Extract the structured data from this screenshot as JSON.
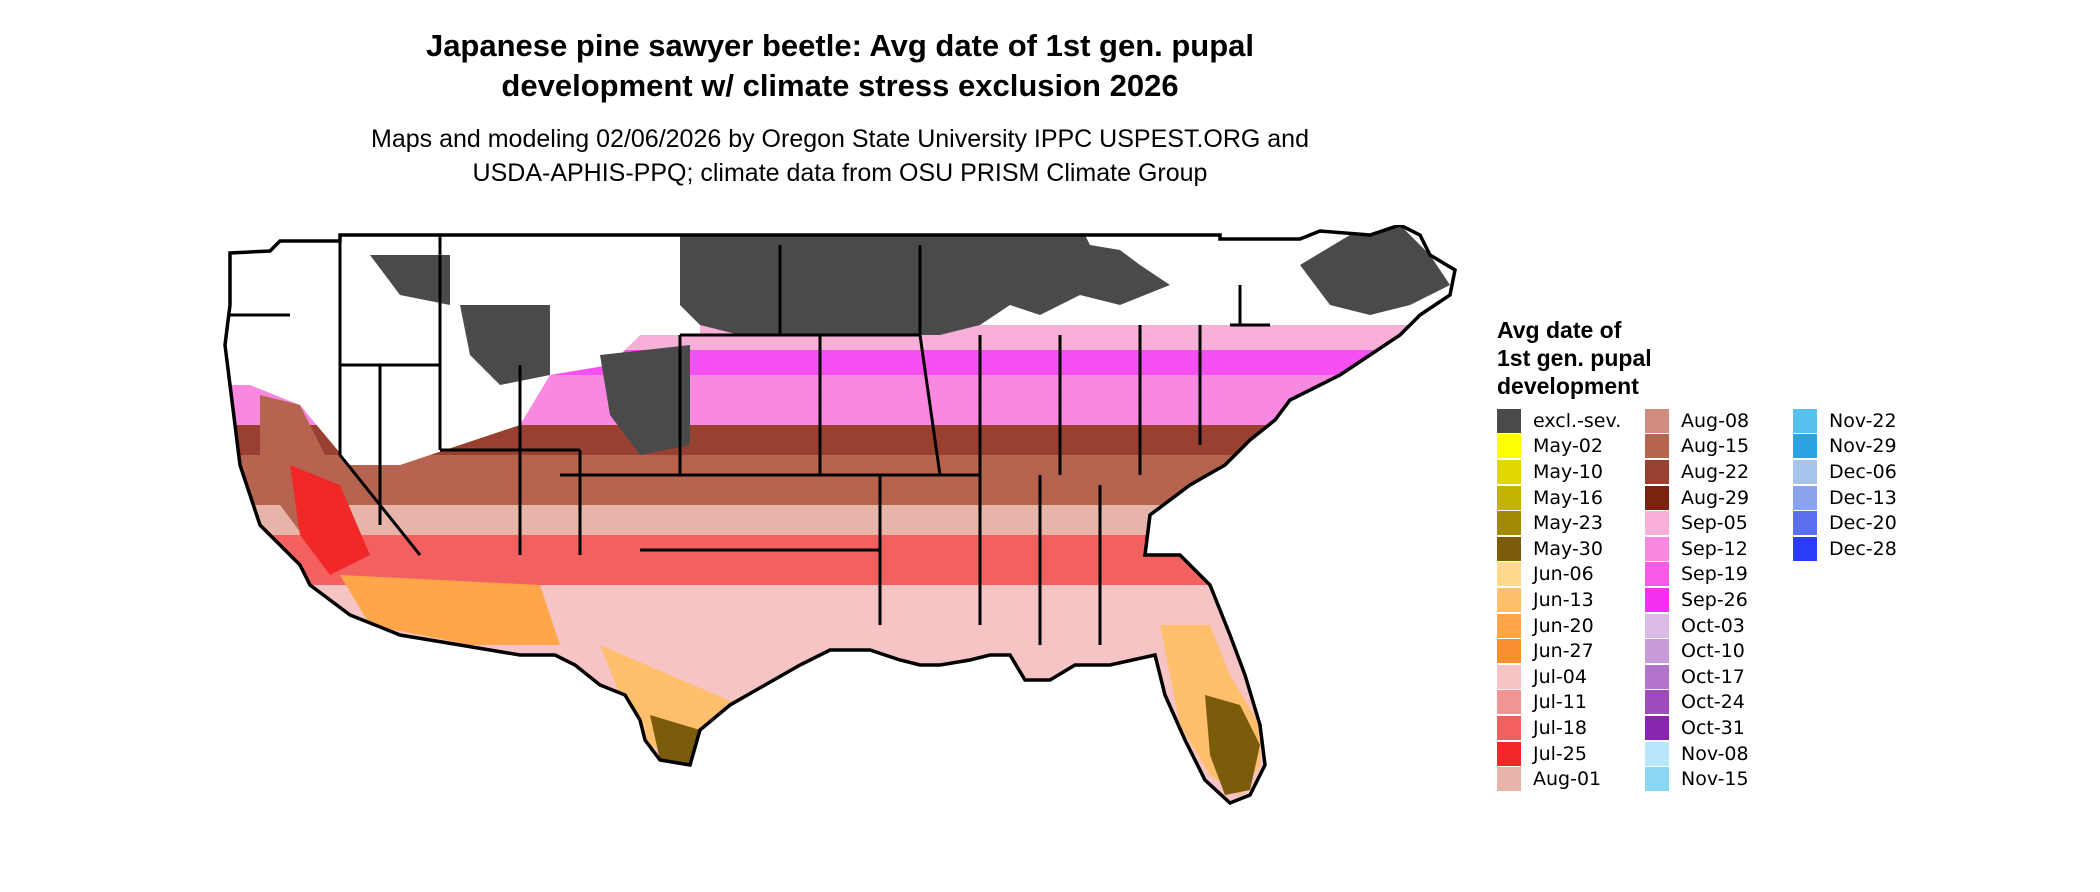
{
  "title": {
    "line1": "Japanese pine sawyer beetle: Avg date of 1st gen. pupal",
    "line2": "development w/ climate stress exclusion 2026"
  },
  "subtitle": {
    "line1": "Maps and modeling 02/06/2026 by Oregon State University IPPC USPEST.ORG and",
    "line2": "USDA-APHIS-PPQ; climate data from OSU PRISM Climate Group"
  },
  "legend": {
    "title_line1": "Avg date of",
    "title_line2": "1st gen. pupal",
    "title_line3": "development",
    "items": [
      {
        "label": "excl.-sev.",
        "color": "#4a4a4a"
      },
      {
        "label": "May-02",
        "color": "#ffff00"
      },
      {
        "label": "May-10",
        "color": "#e0d800"
      },
      {
        "label": "May-16",
        "color": "#c2b400"
      },
      {
        "label": "May-23",
        "color": "#a08a08"
      },
      {
        "label": "May-30",
        "color": "#7a5c0a"
      },
      {
        "label": "Jun-06",
        "color": "#ffd98c"
      },
      {
        "label": "Jun-13",
        "color": "#ffbf6c"
      },
      {
        "label": "Jun-20",
        "color": "#ffa64a"
      },
      {
        "label": "Jun-27",
        "color": "#f98f2e"
      },
      {
        "label": "Jul-04",
        "color": "#f6c4c4"
      },
      {
        "label": "Jul-11",
        "color": "#f19494"
      },
      {
        "label": "Jul-18",
        "color": "#f36060"
      },
      {
        "label": "Jul-25",
        "color": "#f02828"
      },
      {
        "label": "Aug-01",
        "color": "#e6b4a8"
      },
      {
        "label": "Aug-08",
        "color": "#d08c80"
      },
      {
        "label": "Aug-15",
        "color": "#b66450"
      },
      {
        "label": "Aug-22",
        "color": "#9a4030"
      },
      {
        "label": "Aug-29",
        "color": "#7a2410"
      },
      {
        "label": "Sep-05",
        "color": "#f8b0d8"
      },
      {
        "label": "Sep-12",
        "color": "#f888e0"
      },
      {
        "label": "Sep-19",
        "color": "#f65ae6"
      },
      {
        "label": "Sep-26",
        "color": "#f530f0"
      },
      {
        "label": "Oct-03",
        "color": "#dcbce6"
      },
      {
        "label": "Oct-10",
        "color": "#c89ad8"
      },
      {
        "label": "Oct-17",
        "color": "#b274cc"
      },
      {
        "label": "Oct-24",
        "color": "#9e4cbc"
      },
      {
        "label": "Oct-31",
        "color": "#8a26ae"
      },
      {
        "label": "Nov-08",
        "color": "#b8e6fa"
      },
      {
        "label": "Nov-15",
        "color": "#8ad6f4"
      },
      {
        "label": "Nov-22",
        "color": "#58c0ee"
      },
      {
        "label": "Nov-29",
        "color": "#2aa4e0"
      },
      {
        "label": "Dec-06",
        "color": "#a8c4ec"
      },
      {
        "label": "Dec-13",
        "color": "#8aa4ec"
      },
      {
        "label": "Dec-20",
        "color": "#5a70f0"
      },
      {
        "label": "Dec-28",
        "color": "#2a3cf8"
      }
    ]
  }
}
